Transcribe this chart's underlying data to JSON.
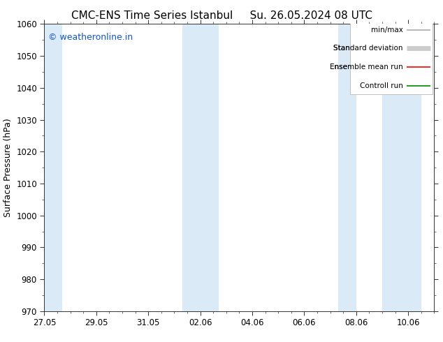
{
  "title_left": "CMC-ENS Time Series Istanbul",
  "title_right": "Su. 26.05.2024 08 UTC",
  "ylabel": "Surface Pressure (hPa)",
  "ylim": [
    970,
    1060
  ],
  "yticks": [
    970,
    980,
    990,
    1000,
    1010,
    1020,
    1030,
    1040,
    1050,
    1060
  ],
  "xtick_labels": [
    "27.05",
    "29.05",
    "31.05",
    "02.06",
    "04.06",
    "06.06",
    "08.06",
    "10.06"
  ],
  "xtick_positions": [
    0,
    2,
    4,
    6,
    8,
    10,
    12,
    14
  ],
  "xlim": [
    0,
    15
  ],
  "bg_color": "#ffffff",
  "plot_bg_color": "#ffffff",
  "shaded_band_color": "#daeaf7",
  "shaded_regions": [
    {
      "start": -0.1,
      "end": 0.7
    },
    {
      "start": 5.3,
      "end": 6.7
    },
    {
      "start": 11.3,
      "end": 12.0
    },
    {
      "start": 13.0,
      "end": 14.5
    }
  ],
  "watermark_text": "© weatheronline.in",
  "watermark_color": "#1155cc",
  "legend_entries": [
    {
      "label": "min/max",
      "color": "#aaaaaa",
      "lw": 1.2
    },
    {
      "label": "Standard deviation",
      "color": "#cccccc",
      "lw": 5
    },
    {
      "label": "Ensemble mean run",
      "color": "#ff0000",
      "lw": 1.2
    },
    {
      "label": "Controll run",
      "color": "#008800",
      "lw": 1.2
    }
  ],
  "title_fontsize": 11,
  "axis_label_fontsize": 9,
  "tick_fontsize": 8.5,
  "watermark_fontsize": 9,
  "legend_fontsize": 7.5
}
